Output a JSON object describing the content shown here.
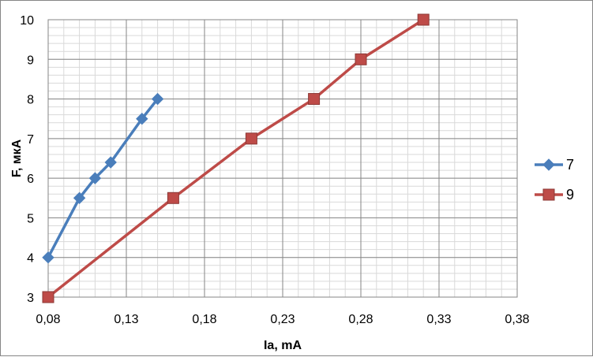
{
  "chart_data": {
    "type": "line",
    "title": "",
    "xlabel": "Ia, mA",
    "ylabel": "F, мкА",
    "xlim": [
      0.08,
      0.38
    ],
    "ylim": [
      3,
      10
    ],
    "x_ticks": [
      0.08,
      0.13,
      0.18,
      0.23,
      0.28,
      0.33,
      0.38
    ],
    "x_tick_labels": [
      "0,08",
      "0,13",
      "0,18",
      "0,23",
      "0,28",
      "0,33",
      "0,38"
    ],
    "y_ticks": [
      3,
      4,
      5,
      6,
      7,
      8,
      9,
      10
    ],
    "y_tick_labels": [
      "3",
      "4",
      "5",
      "6",
      "7",
      "8",
      "9",
      "10"
    ],
    "grid": true,
    "legend_position": "right",
    "series": [
      {
        "name": "7",
        "color": "#4a7ebb",
        "marker": "diamond",
        "x": [
          0.08,
          0.1,
          0.11,
          0.12,
          0.14,
          0.15
        ],
        "y": [
          4.0,
          5.5,
          6.0,
          6.4,
          7.5,
          8.0
        ]
      },
      {
        "name": "9",
        "color": "#be4b48",
        "marker": "square",
        "x": [
          0.08,
          0.16,
          0.21,
          0.25,
          0.28,
          0.32
        ],
        "y": [
          3.0,
          5.5,
          7.0,
          8.0,
          9.0,
          10.0
        ]
      }
    ]
  }
}
